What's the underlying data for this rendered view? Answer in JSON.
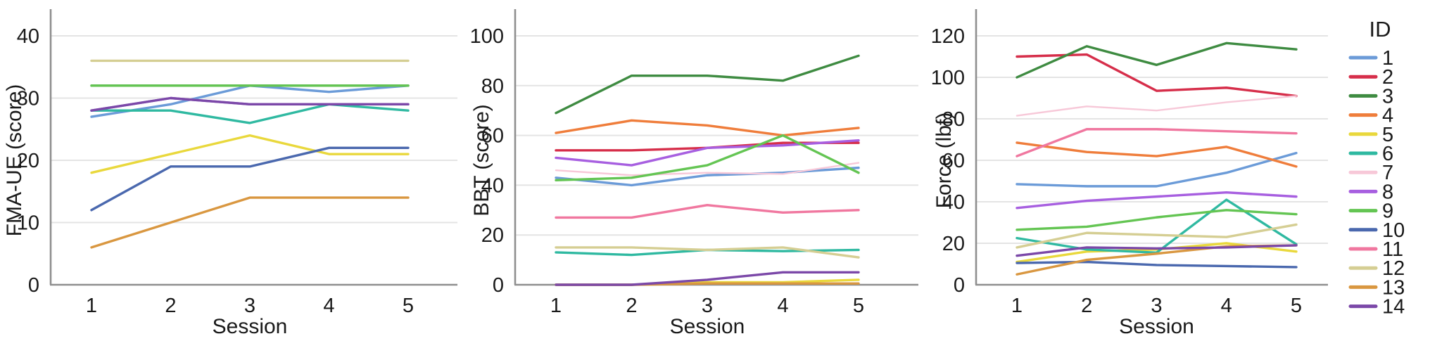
{
  "legend": {
    "title": "ID",
    "entries": [
      {
        "id": "1",
        "color": "#6B9BD8"
      },
      {
        "id": "2",
        "color": "#D62E4A"
      },
      {
        "id": "3",
        "color": "#3E8B41"
      },
      {
        "id": "4",
        "color": "#EF7D3B"
      },
      {
        "id": "5",
        "color": "#E9D83C"
      },
      {
        "id": "6",
        "color": "#2FB9A1"
      },
      {
        "id": "7",
        "color": "#F7C8D8"
      },
      {
        "id": "8",
        "color": "#A75FE0"
      },
      {
        "id": "9",
        "color": "#64C553"
      },
      {
        "id": "10",
        "color": "#4A68AE"
      },
      {
        "id": "11",
        "color": "#F0779F"
      },
      {
        "id": "12",
        "color": "#D5CE93"
      },
      {
        "id": "13",
        "color": "#D99740"
      },
      {
        "id": "14",
        "color": "#7B48A8"
      }
    ]
  },
  "chart_data": [
    {
      "type": "line",
      "xlabel": "Session",
      "ylabel": "FMA-UE (score)",
      "x": [
        1,
        2,
        3,
        4,
        5
      ],
      "ylim": [
        0,
        40
      ],
      "yticks": [
        0,
        10,
        20,
        30,
        40
      ],
      "grid": "horizontal",
      "legend_position": "figure-right",
      "series": [
        {
          "name": "1",
          "values": [
            27,
            29,
            32,
            31,
            32
          ]
        },
        {
          "name": "3",
          "values": [
            32,
            32,
            32,
            32,
            32
          ]
        },
        {
          "name": "5",
          "values": [
            18,
            21,
            24,
            21,
            21
          ]
        },
        {
          "name": "6",
          "values": [
            28,
            28,
            26,
            29,
            28
          ]
        },
        {
          "name": "8",
          "values": [
            28,
            30,
            29,
            29,
            29
          ]
        },
        {
          "name": "9",
          "values": [
            32,
            32,
            32,
            32,
            32
          ]
        },
        {
          "name": "10",
          "values": [
            12,
            19,
            19,
            22,
            22
          ]
        },
        {
          "name": "12",
          "values": [
            36,
            36,
            36,
            36,
            36
          ]
        },
        {
          "name": "13",
          "values": [
            6,
            10,
            14,
            14,
            14
          ]
        },
        {
          "name": "14",
          "values": [
            28,
            30,
            29,
            29,
            29
          ]
        }
      ]
    },
    {
      "type": "line",
      "xlabel": "Session",
      "ylabel": "BBT (score)",
      "x": [
        1,
        2,
        3,
        4,
        5
      ],
      "ylim": [
        0,
        100
      ],
      "yticks": [
        0,
        20,
        40,
        60,
        80,
        100
      ],
      "grid": "horizontal",
      "legend_position": "figure-right",
      "series": [
        {
          "name": "1",
          "values": [
            43,
            40,
            44,
            45,
            47
          ]
        },
        {
          "name": "2",
          "values": [
            54,
            54,
            55,
            57,
            57
          ]
        },
        {
          "name": "3",
          "values": [
            69,
            84,
            84,
            82,
            92
          ]
        },
        {
          "name": "4",
          "values": [
            61,
            66,
            64,
            60,
            63
          ]
        },
        {
          "name": "5",
          "values": [
            0,
            0,
            1,
            1,
            2
          ]
        },
        {
          "name": "6",
          "values": [
            13,
            12,
            14,
            13.5,
            14
          ]
        },
        {
          "name": "7",
          "values": [
            46,
            44,
            45,
            44.5,
            49
          ]
        },
        {
          "name": "8",
          "values": [
            51,
            48,
            55,
            56,
            58
          ]
        },
        {
          "name": "9",
          "values": [
            42,
            43,
            48,
            60,
            45
          ]
        },
        {
          "name": "11",
          "values": [
            27,
            27,
            32,
            29,
            30
          ]
        },
        {
          "name": "12",
          "values": [
            15,
            15,
            14,
            15,
            11
          ]
        },
        {
          "name": "13",
          "values": [
            0,
            0,
            0.5,
            0.5,
            0.5
          ]
        },
        {
          "name": "14",
          "values": [
            0,
            0,
            2,
            5,
            5
          ]
        }
      ]
    },
    {
      "type": "line",
      "xlabel": "Session",
      "ylabel": "Force (lbf)",
      "x": [
        1,
        2,
        3,
        4,
        5
      ],
      "ylim": [
        0,
        120
      ],
      "yticks": [
        0,
        20,
        40,
        60,
        80,
        100,
        120
      ],
      "grid": "horizontal",
      "legend_position": "figure-right",
      "series": [
        {
          "name": "1",
          "values": [
            48.5,
            47.5,
            47.5,
            54,
            63.5
          ]
        },
        {
          "name": "2",
          "values": [
            110,
            111,
            93.5,
            95,
            91
          ]
        },
        {
          "name": "3",
          "values": [
            100,
            115,
            106,
            116.5,
            113.5
          ]
        },
        {
          "name": "4",
          "values": [
            68.5,
            64,
            62,
            66.5,
            57
          ]
        },
        {
          "name": "5",
          "values": [
            11,
            16,
            17,
            20,
            16
          ]
        },
        {
          "name": "6",
          "values": [
            22.5,
            17,
            15.5,
            41,
            19.5
          ]
        },
        {
          "name": "7",
          "values": [
            81.5,
            86,
            84,
            88,
            91
          ]
        },
        {
          "name": "8",
          "values": [
            37,
            40.5,
            42.5,
            44.5,
            42.5
          ]
        },
        {
          "name": "9",
          "values": [
            26.5,
            28,
            32.5,
            36,
            34
          ]
        },
        {
          "name": "10",
          "values": [
            10.5,
            11,
            9.5,
            9,
            8.5
          ]
        },
        {
          "name": "11",
          "values": [
            62,
            75,
            75,
            74,
            73
          ]
        },
        {
          "name": "12",
          "values": [
            18,
            25,
            24,
            23,
            29
          ]
        },
        {
          "name": "13",
          "values": [
            5,
            12,
            15,
            18.5,
            19
          ]
        },
        {
          "name": "14",
          "values": [
            14,
            18,
            17.5,
            18,
            19
          ]
        }
      ]
    }
  ]
}
